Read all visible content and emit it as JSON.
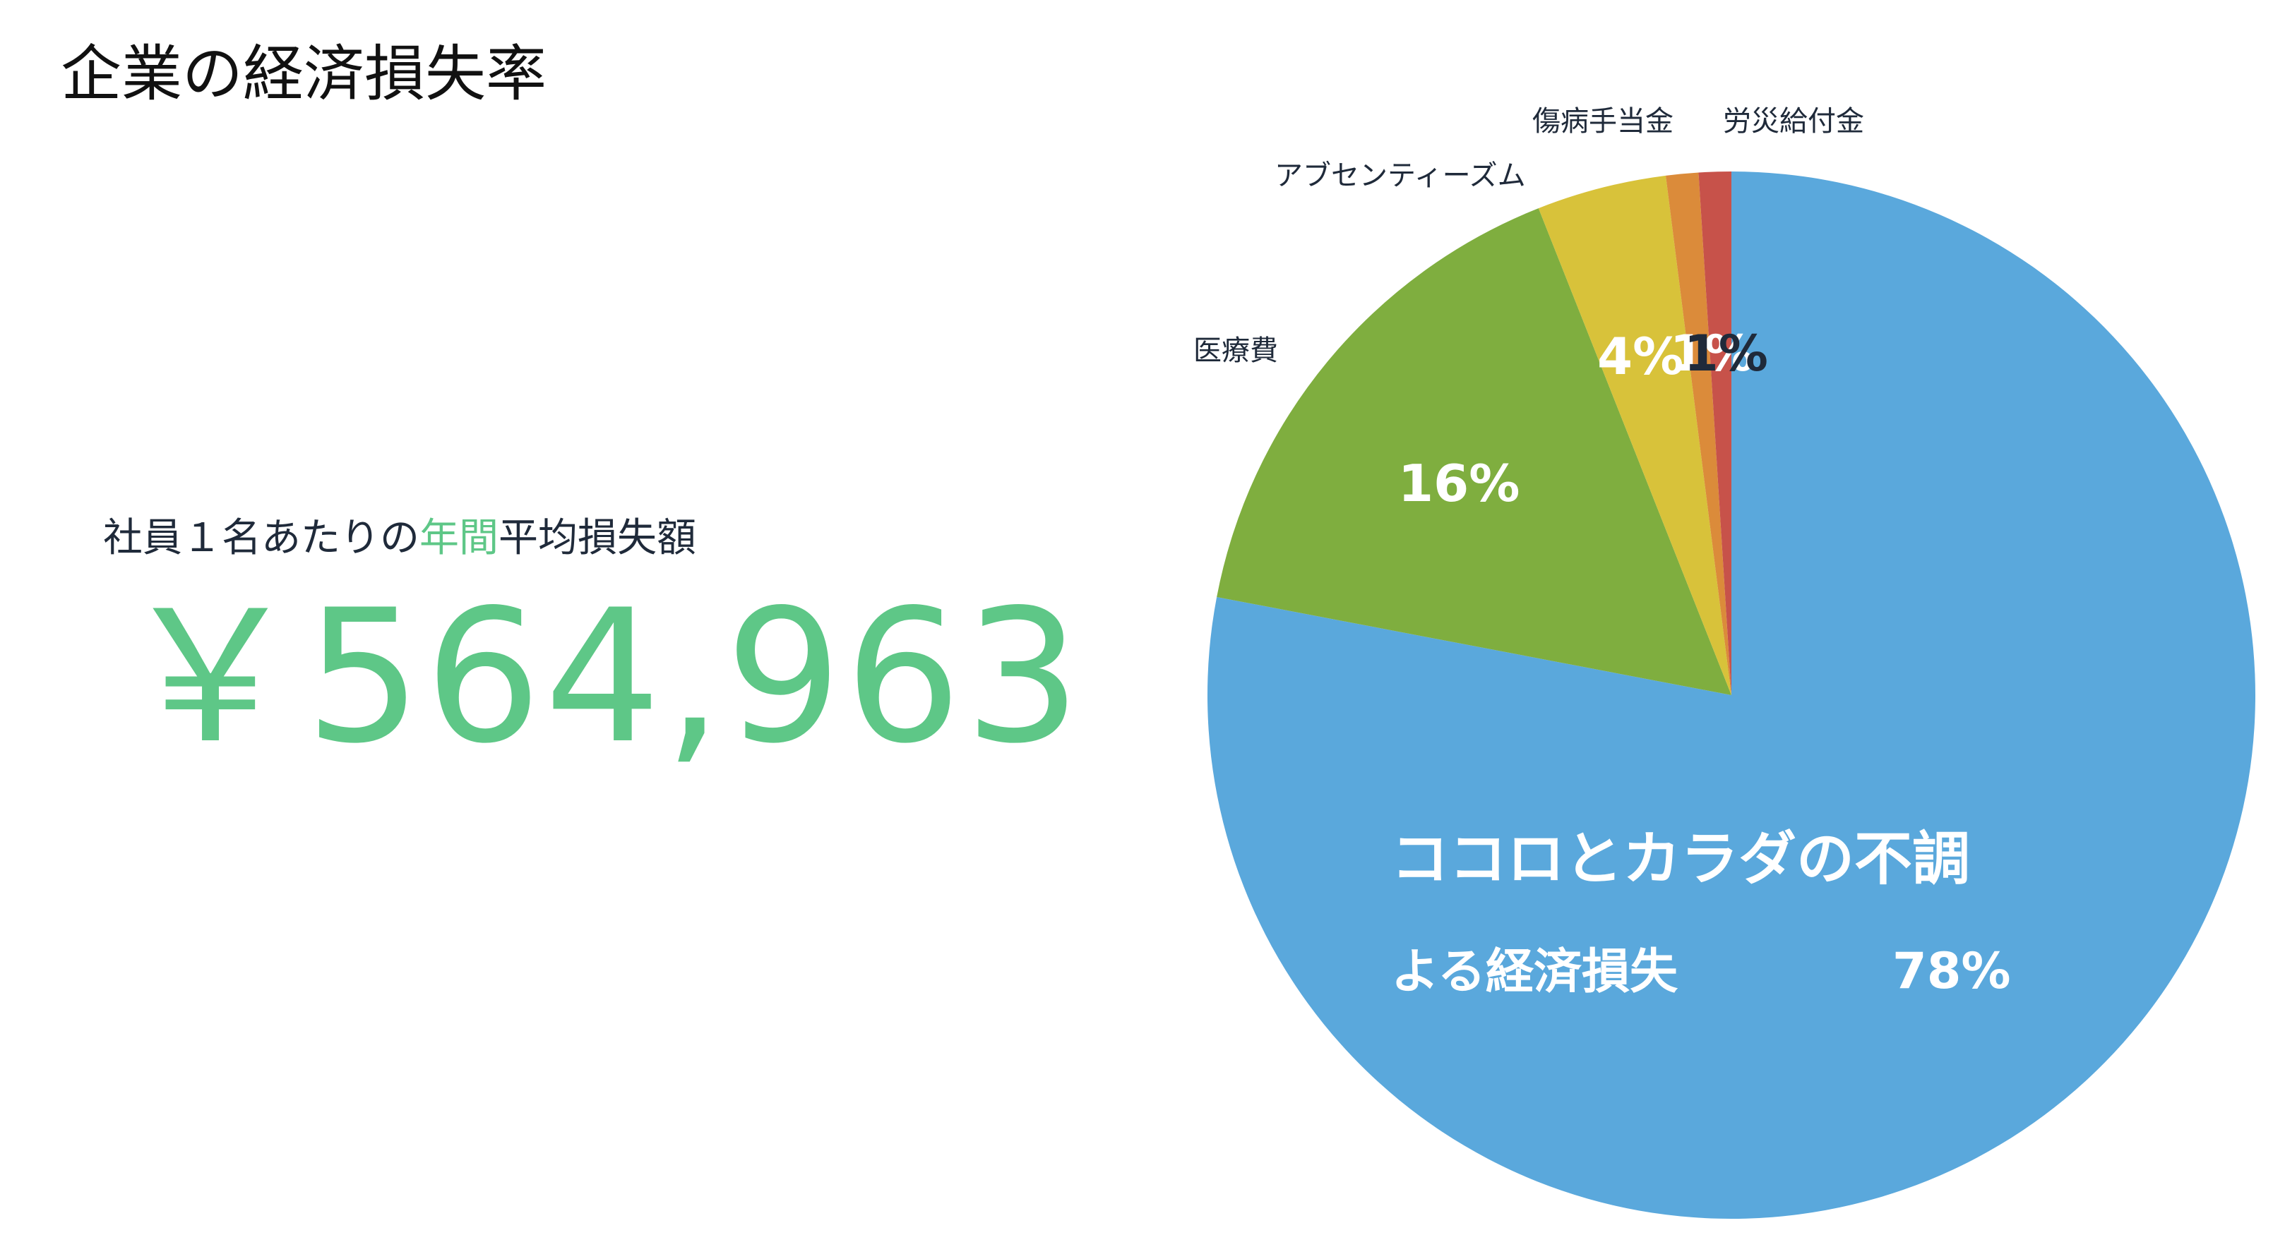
{
  "page": {
    "title": "企業の経済損失率",
    "subtitle_pre": "社員１名あたりの",
    "subtitle_accent": "年間",
    "subtitle_post": "平均損失額",
    "amount": "￥564,963"
  },
  "colors": {
    "accent_green": "#5ec787",
    "slice_blue": "#5aa8dc",
    "slice_green": "#7fae3f",
    "slice_yellow": "#d8c23a",
    "slice_orange": "#db8b3a",
    "slice_red": "#c7524a"
  },
  "chart_data": {
    "type": "pie",
    "slices": [
      {
        "label": "ココロとカラダの不調\nよる経済損失",
        "value": 78,
        "value_label": "78%",
        "color": "#5aa8dc",
        "label_inside": true
      },
      {
        "label": "医療費",
        "value": 16,
        "value_label": "16%",
        "color": "#7fae3f",
        "label_inside": false
      },
      {
        "label": "アブセンティーズム",
        "value": 4,
        "value_label": "4%",
        "color": "#d8c23a",
        "label_inside": false
      },
      {
        "label": "傷病手当金",
        "value": 1,
        "value_label": "1%",
        "color": "#db8b3a",
        "label_inside": false
      },
      {
        "label": "労災給付金",
        "value": 1,
        "value_label": "1%",
        "color": "#c7524a",
        "label_inside": false
      }
    ]
  }
}
